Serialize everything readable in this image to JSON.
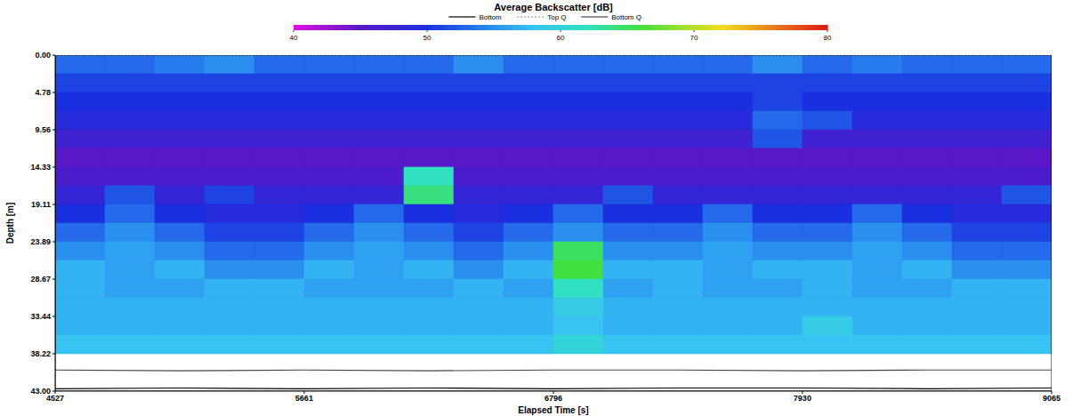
{
  "chart_data": {
    "type": "heatmap",
    "title": "Average Backscatter [dB]",
    "x_label": "Elapsed Time [s]",
    "y_label": "Depth [m]",
    "xlim": [
      4527,
      9065
    ],
    "xticks": [
      4527,
      5661,
      6796,
      7930,
      9065
    ],
    "ylim": [
      0,
      43
    ],
    "yticks": [
      {
        "value": 0,
        "label": "0.00"
      },
      {
        "value": 4.78,
        "label": "4.78"
      },
      {
        "value": 9.56,
        "label": "9.56"
      },
      {
        "value": 14.33,
        "label": "14.33"
      },
      {
        "value": 19.11,
        "label": "19.11"
      },
      {
        "value": 23.89,
        "label": "23.89"
      },
      {
        "value": 28.67,
        "label": "28.67"
      },
      {
        "value": 33.44,
        "label": "33.44"
      },
      {
        "value": 38.22,
        "label": "38.22"
      },
      {
        "value": 43,
        "label": "43.00"
      }
    ],
    "x_edges": [
      4527,
      4753.9,
      4980.8,
      5207.7,
      5434.6,
      5661.5,
      5888.4,
      6115.3,
      6342.2,
      6569.1,
      6796,
      7022.9,
      7249.8,
      7476.7,
      7703.6,
      7930.5,
      8157.4,
      8384.3,
      8611.2,
      8838.1,
      9065
    ],
    "depth_edges": [
      0,
      2.39,
      4.78,
      7.17,
      9.56,
      11.94,
      14.33,
      16.72,
      19.11,
      21.5,
      23.89,
      26.28,
      28.67,
      31.06,
      33.44,
      35.83,
      38.22
    ],
    "cells": [
      [
        53,
        53,
        54,
        55,
        53,
        53,
        53,
        53,
        55,
        53,
        53,
        53,
        53,
        53,
        55,
        53,
        54,
        53,
        53,
        53
      ],
      [
        51,
        51,
        51,
        51,
        51,
        51,
        51,
        51,
        51,
        51,
        51,
        51,
        51,
        51,
        51,
        51,
        51,
        51,
        51,
        51
      ],
      [
        50,
        50,
        50,
        50,
        50,
        50,
        50,
        50,
        50,
        50,
        50,
        50,
        50,
        50,
        51,
        50,
        50,
        50,
        50,
        50
      ],
      [
        49,
        49,
        49,
        49,
        49,
        49,
        49,
        49,
        49,
        49,
        49,
        49,
        49,
        49,
        53,
        52,
        49,
        49,
        49,
        49
      ],
      [
        47,
        47,
        47,
        47,
        47,
        47,
        47,
        47,
        47,
        47,
        47,
        47,
        47,
        47,
        52,
        47,
        47,
        47,
        47,
        47
      ],
      [
        45,
        45,
        45,
        45,
        45,
        45,
        45,
        45,
        45,
        45,
        45,
        45,
        45,
        45,
        45,
        45,
        45,
        45,
        45,
        45
      ],
      [
        46,
        46,
        46,
        46,
        46,
        46,
        46,
        62,
        46,
        46,
        46,
        46,
        46,
        46,
        46,
        46,
        46,
        46,
        46,
        46
      ],
      [
        48,
        52,
        48,
        51,
        48,
        48,
        48,
        64,
        48,
        48,
        48,
        52,
        48,
        48,
        48,
        48,
        48,
        48,
        48,
        52
      ],
      [
        50,
        53,
        50,
        49,
        49,
        50,
        53,
        50,
        49,
        50,
        53,
        50,
        50,
        53,
        50,
        50,
        53,
        50,
        49,
        49
      ],
      [
        53,
        55,
        53,
        51,
        51,
        53,
        55,
        53,
        51,
        53,
        55,
        53,
        53,
        55,
        53,
        53,
        55,
        53,
        51,
        51
      ],
      [
        55,
        56,
        55,
        53,
        53,
        55,
        56,
        55,
        53,
        55,
        65,
        55,
        55,
        56,
        55,
        55,
        56,
        55,
        53,
        53
      ],
      [
        57,
        56,
        57,
        55,
        55,
        57,
        56,
        57,
        55,
        57,
        66,
        57,
        57,
        56,
        57,
        57,
        56,
        57,
        55,
        55
      ],
      [
        57,
        56,
        56,
        57,
        57,
        56,
        56,
        56,
        57,
        56,
        62,
        56,
        57,
        56,
        56,
        57,
        56,
        56,
        57,
        57
      ],
      [
        57,
        57,
        57,
        57,
        57,
        57,
        57,
        57,
        57,
        57,
        59,
        57,
        57,
        57,
        57,
        57,
        57,
        57,
        57,
        57
      ],
      [
        57,
        57,
        57,
        57,
        57,
        57,
        57,
        57,
        57,
        57,
        58,
        57,
        57,
        57,
        57,
        59,
        57,
        57,
        57,
        57
      ],
      [
        58,
        58,
        58,
        58,
        58,
        58,
        58,
        58,
        58,
        58,
        60,
        58,
        58,
        58,
        58,
        58,
        58,
        58,
        58,
        58
      ]
    ],
    "colorbar_range": [
      40,
      80
    ],
    "colorbar_ticks": [
      40,
      50,
      60,
      70,
      80
    ],
    "series": [
      {
        "name": "Bottom",
        "color": "#000000",
        "line_style": "solid",
        "x": [
          4527,
          5094,
          5661,
          6229,
          6796,
          7363,
          7930,
          8498,
          9065
        ],
        "values": [
          42.7,
          42.6,
          42.7,
          42.6,
          42.7,
          42.6,
          42.6,
          42.7,
          42.6
        ]
      },
      {
        "name": "Top Q",
        "color": "#888888",
        "line_style": "dotted",
        "x": [
          4527,
          5094,
          5661,
          6229,
          6796,
          7363,
          7930,
          8498,
          9065
        ],
        "values": [
          0,
          0,
          0,
          0,
          0,
          0,
          0,
          0,
          0
        ]
      },
      {
        "name": "Bottom Q",
        "color": "#444444",
        "line_style": "solid",
        "x": [
          4527,
          5094,
          5661,
          6229,
          6796,
          7363,
          7930,
          8498,
          9065
        ],
        "values": [
          40.3,
          40.4,
          40.3,
          40.4,
          40.3,
          40.3,
          40.4,
          40.3,
          40.3
        ]
      }
    ],
    "legend": "top"
  }
}
